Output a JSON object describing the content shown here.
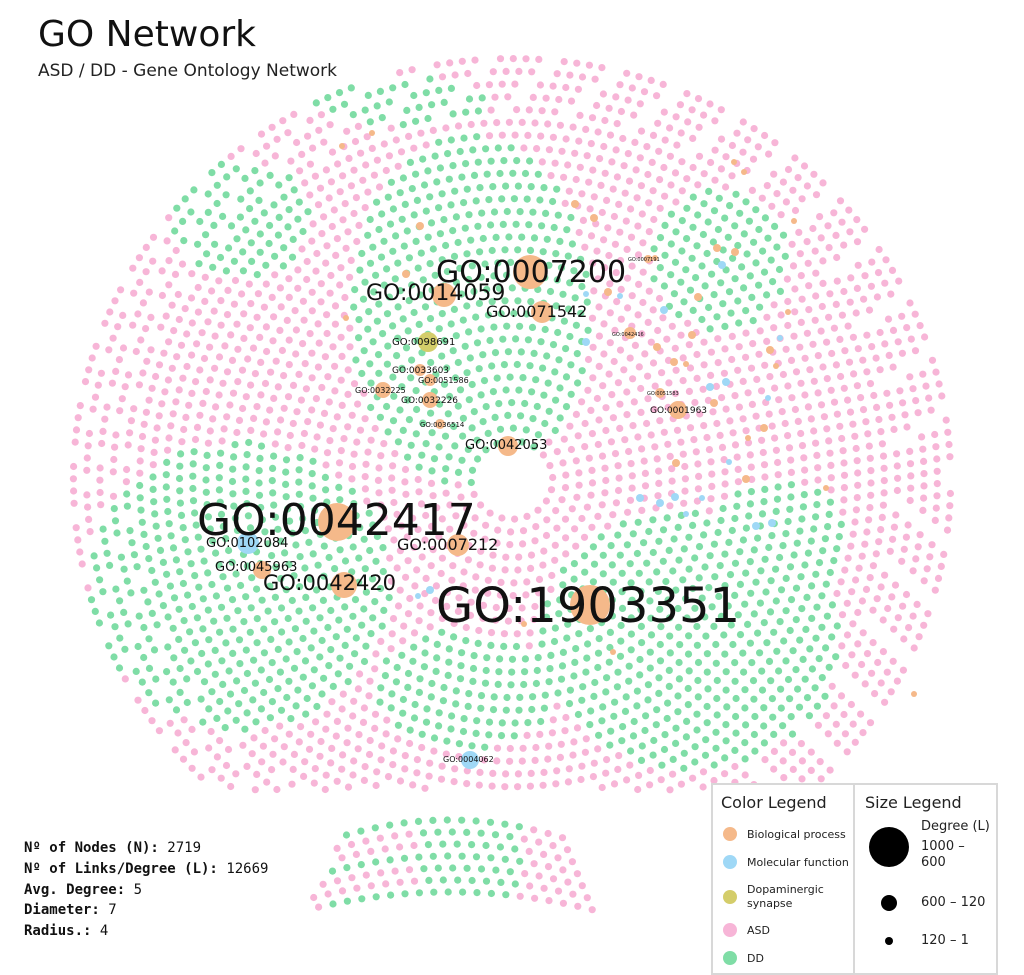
{
  "header": {
    "title": "GO Network",
    "subtitle": "ASD / DD  - Gene Ontology Network"
  },
  "colors": {
    "biological_process": "#f5b98a",
    "molecular_function": "#9fd8f6",
    "dopaminergic": "#d4cd6a",
    "asd": "#f7b5d7",
    "dd": "#7fdda6"
  },
  "go_labels": [
    {
      "text": "GO:1903351",
      "type": "biological_process"
    },
    {
      "text": "GO:0042417",
      "type": "biological_process"
    },
    {
      "text": "GO:0007200",
      "type": "biological_process"
    },
    {
      "text": "GO:0014059",
      "type": "biological_process"
    },
    {
      "text": "GO:0042420",
      "type": "biological_process"
    },
    {
      "text": "GO:0071542",
      "type": "biological_process"
    },
    {
      "text": "GO:0007212",
      "type": "biological_process"
    },
    {
      "text": "GO:0102084",
      "type": "molecular_function"
    },
    {
      "text": "GO:0045963",
      "type": "biological_process"
    },
    {
      "text": "GO:0042053",
      "type": "biological_process"
    },
    {
      "text": "GO:0098691",
      "type": "dopaminergic"
    },
    {
      "text": "GO:0033603",
      "type": "biological_process"
    },
    {
      "text": "GO:0051586",
      "type": "biological_process"
    },
    {
      "text": "GO:0032225",
      "type": "biological_process"
    },
    {
      "text": "GO:0032226",
      "type": "biological_process"
    },
    {
      "text": "GO:0036514",
      "type": "biological_process"
    },
    {
      "text": "GO:0001963",
      "type": "biological_process"
    },
    {
      "text": "GO:0004062",
      "type": "molecular_function"
    },
    {
      "text": "GO:0042416",
      "type": "biological_process"
    },
    {
      "text": "GO:0007191",
      "type": "biological_process"
    },
    {
      "text": "GO:0051583",
      "type": "biological_process"
    }
  ],
  "stats": {
    "nodes_label": "Nº of Nodes (N):",
    "nodes_value": "2719",
    "links_label": "Nº of Links/Degree (L):",
    "links_value": "12669",
    "avg_label": "Avg. Degree:",
    "avg_value": "5",
    "diameter_label": "Diameter:",
    "diameter_value": "7",
    "radius_label": "Radius.:",
    "radius_value": "4"
  },
  "color_legend": {
    "title": "Color Legend",
    "items": [
      {
        "label": "Biological process",
        "color": "#f5b98a"
      },
      {
        "label": "Molecular function",
        "color": "#9fd8f6"
      },
      {
        "label": "Dopaminergic synapse",
        "color": "#d4cd6a"
      },
      {
        "label": "ASD",
        "color": "#f7b5d7"
      },
      {
        "label": "DD",
        "color": "#7fdda6"
      }
    ]
  },
  "size_legend": {
    "title": "Size Legend",
    "unit": "Degree (L)",
    "items": [
      {
        "label": "1000 – 600"
      },
      {
        "label": "600 – 120"
      },
      {
        "label": "120 – 1"
      }
    ]
  }
}
